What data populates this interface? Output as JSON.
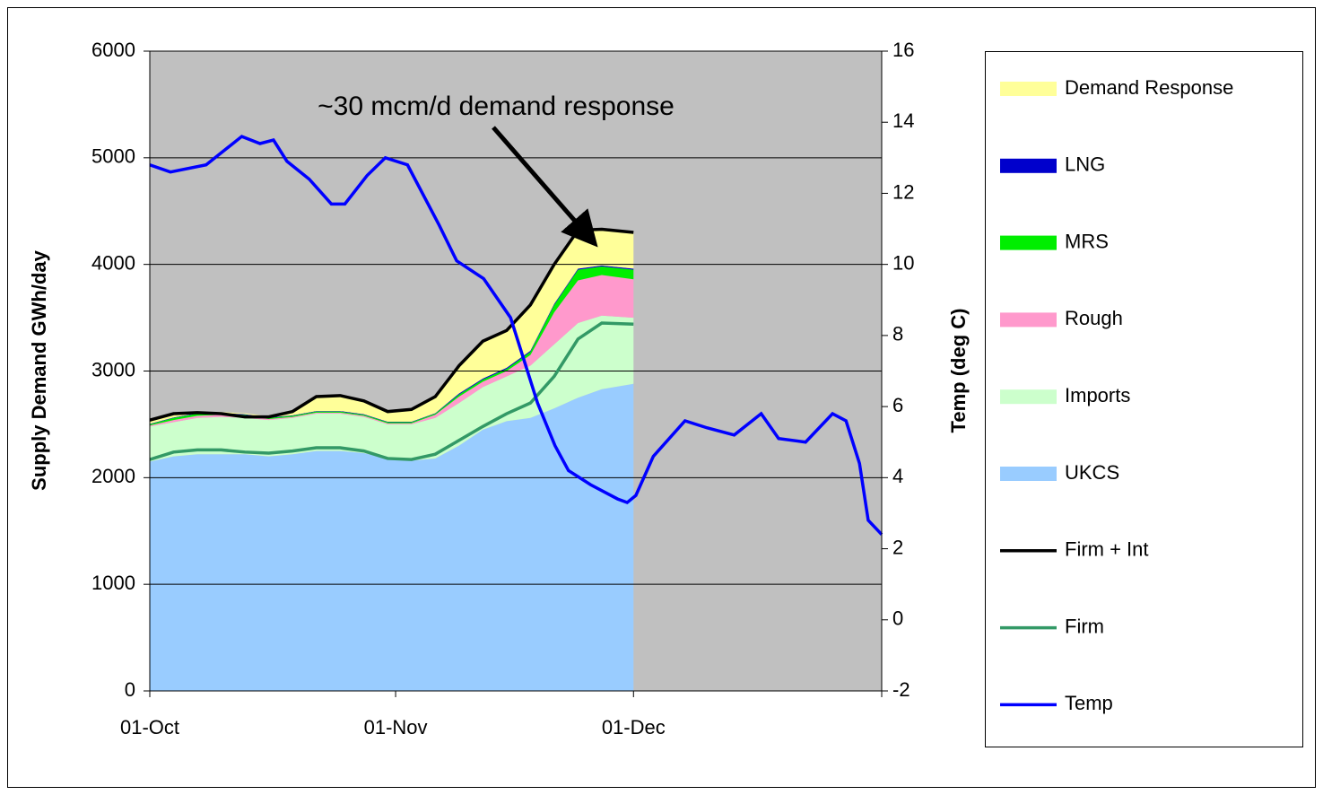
{
  "chart_data": {
    "type": "area",
    "annotation": "~30 mcm/d demand response",
    "ylabel": "Supply Demand GWh/day",
    "y2label": "Temp (deg C)",
    "x": [
      0,
      3,
      6,
      9,
      12,
      15,
      18,
      21,
      24,
      27,
      30,
      33,
      36,
      39,
      42,
      45,
      48,
      51,
      54,
      57,
      61
    ],
    "xlim": [
      0,
      92.3
    ],
    "xticks": [
      {
        "value": 0,
        "label": "01-Oct"
      },
      {
        "value": 31,
        "label": "01-Nov"
      },
      {
        "value": 61,
        "label": "01-Dec"
      }
    ],
    "ylim": [
      0,
      6000
    ],
    "yticks": [
      0,
      1000,
      2000,
      3000,
      4000,
      5000,
      6000
    ],
    "y2lim": [
      -2,
      16
    ],
    "y2ticks": [
      -2,
      0,
      2,
      4,
      6,
      8,
      10,
      12,
      14,
      16
    ],
    "grid": true,
    "background": "#c0c0c0",
    "series": [
      {
        "name": "Demand Response",
        "type": "area",
        "color": "#ffff99",
        "values": [
          35,
          35,
          10,
          10,
          10,
          10,
          35,
          135,
          145,
          125,
          95,
          115,
          155,
          260,
          350,
          350,
          430,
          370,
          360,
          340,
          340
        ]
      },
      {
        "name": "LNG",
        "type": "area",
        "color": "#0000cc",
        "values": [
          5,
          5,
          5,
          5,
          5,
          5,
          5,
          5,
          5,
          5,
          5,
          5,
          5,
          10,
          10,
          10,
          10,
          10,
          10,
          10,
          10
        ]
      },
      {
        "name": "MRS",
        "type": "area",
        "color": "#00ee00",
        "values": [
          10,
          20,
          20,
          10,
          10,
          10,
          10,
          10,
          10,
          10,
          10,
          10,
          10,
          20,
          20,
          20,
          30,
          70,
          100,
          80,
          90
        ]
      },
      {
        "name": "Rough",
        "type": "area",
        "color": "#ff99cc",
        "values": [
          10,
          20,
          20,
          20,
          20,
          10,
          10,
          10,
          10,
          10,
          10,
          10,
          30,
          60,
          50,
          50,
          100,
          300,
          400,
          380,
          360
        ]
      },
      {
        "name": "Imports",
        "type": "area",
        "color": "#ccffcc",
        "values": [
          330,
          320,
          340,
          350,
          340,
          340,
          340,
          350,
          350,
          340,
          320,
          340,
          380,
          400,
          400,
          420,
          490,
          600,
          700,
          690,
          620
        ]
      },
      {
        "name": "UKCS",
        "type": "area",
        "color": "#99ccff",
        "values": [
          2150,
          2200,
          2220,
          2220,
          2220,
          2200,
          2220,
          2250,
          2250,
          2230,
          2180,
          2160,
          2180,
          2300,
          2450,
          2530,
          2560,
          2650,
          2750,
          2830,
          2880
        ]
      },
      {
        "name": "Firm + Int",
        "type": "line",
        "color": "#000000",
        "values": [
          2540,
          2600,
          2610,
          2600,
          2570,
          2570,
          2620,
          2760,
          2770,
          2720,
          2620,
          2640,
          2760,
          3050,
          3280,
          3380,
          3620,
          4000,
          4320,
          4330,
          4300
        ]
      },
      {
        "name": "Firm",
        "type": "line",
        "color": "#339966",
        "values": [
          2170,
          2240,
          2260,
          2260,
          2240,
          2230,
          2250,
          2280,
          2280,
          2250,
          2180,
          2170,
          2220,
          2350,
          2480,
          2600,
          2700,
          2950,
          3300,
          3450,
          3440
        ]
      },
      {
        "name": "Temp",
        "type": "line",
        "axis": "y2",
        "color": "#0000ff",
        "x": [
          0,
          2.6,
          7.1,
          11.6,
          13.9,
          15.6,
          17.3,
          20.1,
          22.9,
          24.6,
          27.4,
          29.7,
          32.5,
          36.5,
          38.7,
          42.1,
          45.5,
          48.9,
          51.1,
          52.8,
          55.6,
          59,
          60.2,
          61.3,
          63.5,
          67.5,
          70.3,
          73.7,
          77.1,
          79.3,
          82.7,
          86.1,
          87.8,
          89.5,
          90.6,
          92.3
        ],
        "values": [
          12.8,
          12.6,
          12.8,
          13.6,
          13.4,
          13.5,
          12.9,
          12.4,
          11.7,
          11.7,
          12.5,
          13,
          12.8,
          11.1,
          10.1,
          9.6,
          8.5,
          6.1,
          4.9,
          4.2,
          3.8,
          3.4,
          3.3,
          3.5,
          4.6,
          5.6,
          5.4,
          5.2,
          5.8,
          5.1,
          5,
          5.8,
          5.6,
          4.4,
          2.8,
          2.4
        ]
      }
    ]
  }
}
